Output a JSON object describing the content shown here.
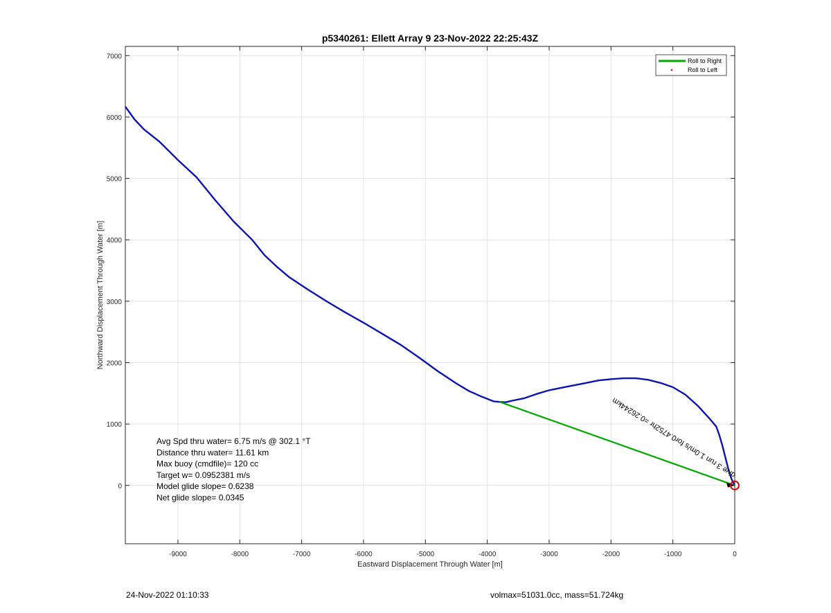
{
  "chart_data": {
    "type": "line",
    "title": "p5340261: Ellett Array 9 23-Nov-2022 22:25:43Z",
    "xlabel": "Eastward Displacement Through Water [m]",
    "ylabel": "Northward Displacement Through Water [m]",
    "xlim": [
      -9850,
      0
    ],
    "ylim": [
      -950,
      7150
    ],
    "xticks": [
      -9000,
      -8000,
      -7000,
      -6000,
      -5000,
      -4000,
      -3000,
      -2000,
      -1000,
      0
    ],
    "yticks": [
      0,
      1000,
      2000,
      3000,
      4000,
      5000,
      6000,
      7000
    ],
    "grid": true,
    "legend_position": "top-right",
    "legend": [
      {
        "label": "Roll to Right",
        "color": "#00aa00",
        "style": "line"
      },
      {
        "label": "Roll to Left",
        "color": "#ff0000",
        "style": "point"
      }
    ],
    "series": [
      {
        "color": "#0a14b4",
        "x": [
          -9850,
          -9700,
          -9550,
          -9300,
          -9000,
          -8700,
          -8400,
          -8100,
          -7800,
          -7600,
          -7400,
          -7200,
          -6900,
          -6600,
          -6300,
          -6000,
          -5700,
          -5400,
          -5100,
          -4800,
          -4500,
          -4300,
          -4100,
          -3900,
          -3800,
          -3700,
          -3600,
          -3400,
          -3200,
          -3000,
          -2800,
          -2600,
          -2400,
          -2200,
          -2000,
          -1800,
          -1600,
          -1400,
          -1200,
          -1000,
          -800,
          -600,
          -400,
          -300,
          -250,
          -200,
          -150,
          -100,
          -50,
          0
        ],
        "y": [
          6170,
          5960,
          5800,
          5600,
          5300,
          5020,
          4650,
          4300,
          4000,
          3750,
          3560,
          3390,
          3190,
          3000,
          2820,
          2650,
          2470,
          2290,
          2080,
          1860,
          1660,
          1540,
          1450,
          1370,
          1360,
          1355,
          1380,
          1420,
          1490,
          1550,
          1590,
          1630,
          1670,
          1710,
          1730,
          1745,
          1745,
          1720,
          1670,
          1600,
          1480,
          1300,
          1080,
          960,
          820,
          650,
          450,
          250,
          100,
          0
        ]
      },
      {
        "name": "Roll to Right",
        "color": "#00aa00",
        "x": [
          -3800,
          0
        ],
        "y": [
          1360,
          0
        ]
      }
    ],
    "annotations": [
      {
        "text": "dive 3 run 1.0m/s for0.4752hr =0.26244km",
        "x": -1950,
        "y": 1430
      },
      {
        "text": "Avg Spd thru water=  6.75 m/s @ 302.1 °T"
      },
      {
        "text": "Distance thru water= 11.61 km"
      },
      {
        "text": "Max buoy (cmdfile)= 120 cc"
      },
      {
        "text": "Target w= 0.0952381 m/s"
      },
      {
        "text": "Model glide slope= 0.6238"
      },
      {
        "text": "Net glide slope= 0.0345"
      }
    ],
    "marker": {
      "name": "end-position",
      "x": 0,
      "y": 0,
      "color": "#dd0000"
    }
  },
  "footer": {
    "left": "24-Nov-2022 01:10:33",
    "right": "volmax=51031.0cc, mass=51.724kg"
  }
}
